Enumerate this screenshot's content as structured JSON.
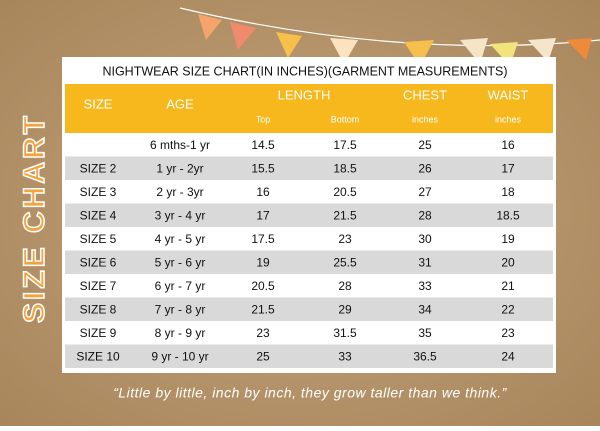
{
  "title": "NIGHTWEAR SIZE CHART(IN INCHES)(GARMENT MEASUREMENTS)",
  "side_title": "SIZE CHART",
  "header": {
    "size": "SIZE",
    "age": "AGE",
    "length": "LENGTH",
    "top": "Top",
    "bottom": "Bottom",
    "chest": "CHEST",
    "chest_unit": "inches",
    "waist": "WAIST",
    "waist_unit": "inches"
  },
  "table": {
    "rows": [
      [
        null,
        "6 mths-1 yr",
        14.5,
        17.5,
        25,
        16
      ],
      [
        "SIZE 2",
        "1 yr - 2yr",
        15.5,
        18.5,
        26,
        17
      ],
      [
        "SIZE 3",
        "2 yr - 3yr",
        16,
        20.5,
        27,
        18
      ],
      [
        "SIZE 4",
        "3 yr - 4 yr",
        17,
        21.5,
        28,
        18.5
      ],
      [
        "SIZE 5",
        "4 yr - 5 yr",
        17.5,
        23,
        30,
        19
      ],
      [
        "SIZE 6",
        "5 yr - 6 yr",
        19,
        25.5,
        31,
        20
      ],
      [
        "SIZE 7",
        "6 yr - 7 yr",
        20.5,
        28,
        33,
        21
      ],
      [
        "SIZE 8",
        "7 yr - 8 yr",
        21.5,
        29,
        34,
        22
      ],
      [
        "SIZE 9",
        "8 yr - 9 yr",
        23,
        31.5,
        35,
        23
      ],
      [
        "SIZE 10",
        "9 yr - 10 yr",
        25,
        33,
        36.5,
        24
      ]
    ]
  },
  "quote": "“Little by little, inch by inch, they grow taller than we think.”"
}
